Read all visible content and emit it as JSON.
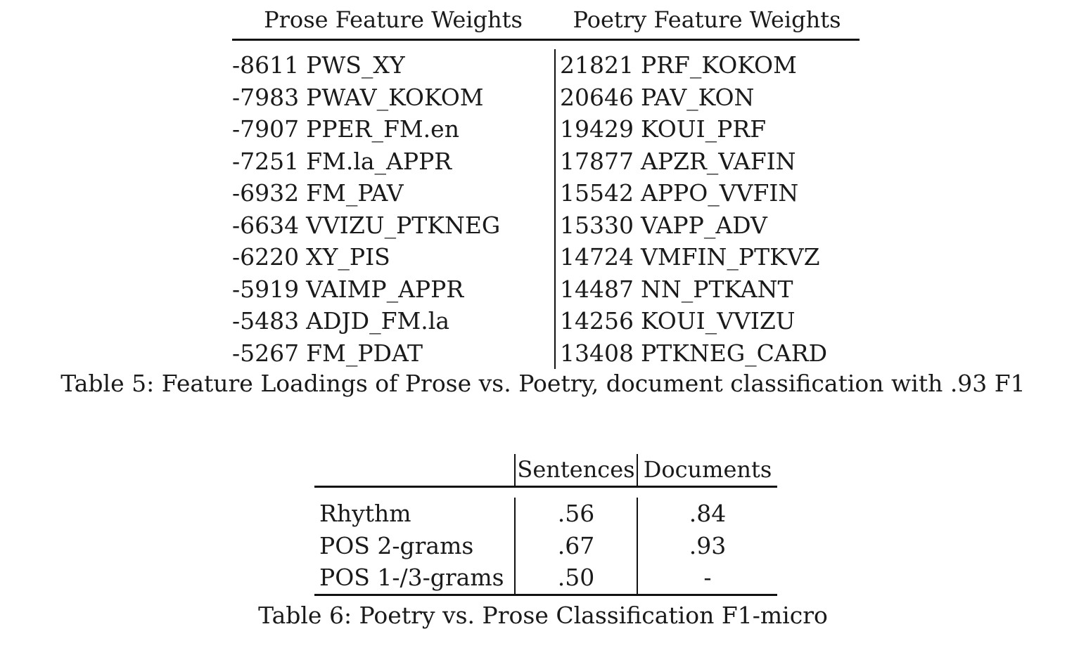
{
  "table5": {
    "header_left": "Prose Feature Weights",
    "header_right": "Poetry Feature Weights",
    "prose_rows": [
      {
        "weight": "-8611",
        "feature": "PWS_XY"
      },
      {
        "weight": "-7983",
        "feature": "PWAV_KOKOM"
      },
      {
        "weight": "-7907",
        "feature": "PPER_FM.en"
      },
      {
        "weight": "-7251",
        "feature": "FM.la_APPR"
      },
      {
        "weight": "-6932",
        "feature": "FM_PAV"
      },
      {
        "weight": "-6634",
        "feature": "VVIZU_PTKNEG"
      },
      {
        "weight": "-6220",
        "feature": "XY_PIS"
      },
      {
        "weight": "-5919",
        "feature": "VAIMP_APPR"
      },
      {
        "weight": "-5483",
        "feature": "ADJD_FM.la"
      },
      {
        "weight": "-5267",
        "feature": "FM_PDAT"
      }
    ],
    "poetry_rows": [
      {
        "weight": "21821",
        "feature": "PRF_KOKOM"
      },
      {
        "weight": "20646",
        "feature": "PAV_KON"
      },
      {
        "weight": "19429",
        "feature": "KOUI_PRF"
      },
      {
        "weight": "17877",
        "feature": "APZR_VAFIN"
      },
      {
        "weight": "15542",
        "feature": "APPO_VVFIN"
      },
      {
        "weight": "15330",
        "feature": "VAPP_ADV"
      },
      {
        "weight": "14724",
        "feature": "VMFIN_PTKVZ"
      },
      {
        "weight": "14487",
        "feature": "NN_PTKANT"
      },
      {
        "weight": "14256",
        "feature": "KOUI_VVIZU"
      },
      {
        "weight": "13408",
        "feature": "PTKNEG_CARD"
      }
    ],
    "caption": "Table 5: Feature Loadings of Prose vs. Poetry, document classification with .93 F1"
  },
  "table6": {
    "headers": [
      "",
      "Sentences",
      "Documents"
    ],
    "rows": [
      {
        "label": "Rhythm",
        "sentences": ".56",
        "documents": ".84"
      },
      {
        "label": "POS 2-grams",
        "sentences": ".67",
        "documents": ".93"
      },
      {
        "label": "POS 1-/3-grams",
        "sentences": ".50",
        "documents": "-"
      }
    ],
    "caption": "Table 6: Poetry vs. Prose Classification F1-micro"
  }
}
